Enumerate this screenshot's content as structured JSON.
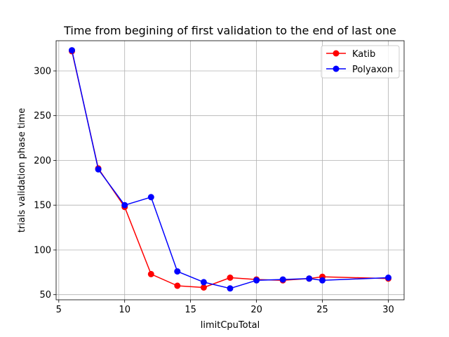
{
  "chart_data": {
    "type": "line",
    "title": "Time from begining of first validation to the end of last one",
    "xlabel": "limitCpuTotal",
    "ylabel": "trials validation phase time",
    "xlim": [
      4.8,
      31.2
    ],
    "ylim": [
      44.3,
      333.7
    ],
    "xticks": [
      5,
      10,
      15,
      20,
      25,
      30
    ],
    "yticks": [
      50,
      100,
      150,
      200,
      250,
      300
    ],
    "grid": true,
    "legend_position": "top-right",
    "x": [
      6,
      8,
      10,
      12,
      14,
      16,
      18,
      20,
      22,
      24,
      25,
      30
    ],
    "series": [
      {
        "name": "Katib",
        "color": "#ff0000",
        "values": [
          322,
          191,
          148,
          73,
          60,
          58,
          69,
          67,
          66,
          68,
          70,
          68
        ]
      },
      {
        "name": "Polyaxon",
        "color": "#0000ff",
        "values": [
          323,
          190,
          150,
          159,
          76,
          64,
          57,
          66,
          67,
          68,
          66,
          69
        ]
      }
    ]
  }
}
